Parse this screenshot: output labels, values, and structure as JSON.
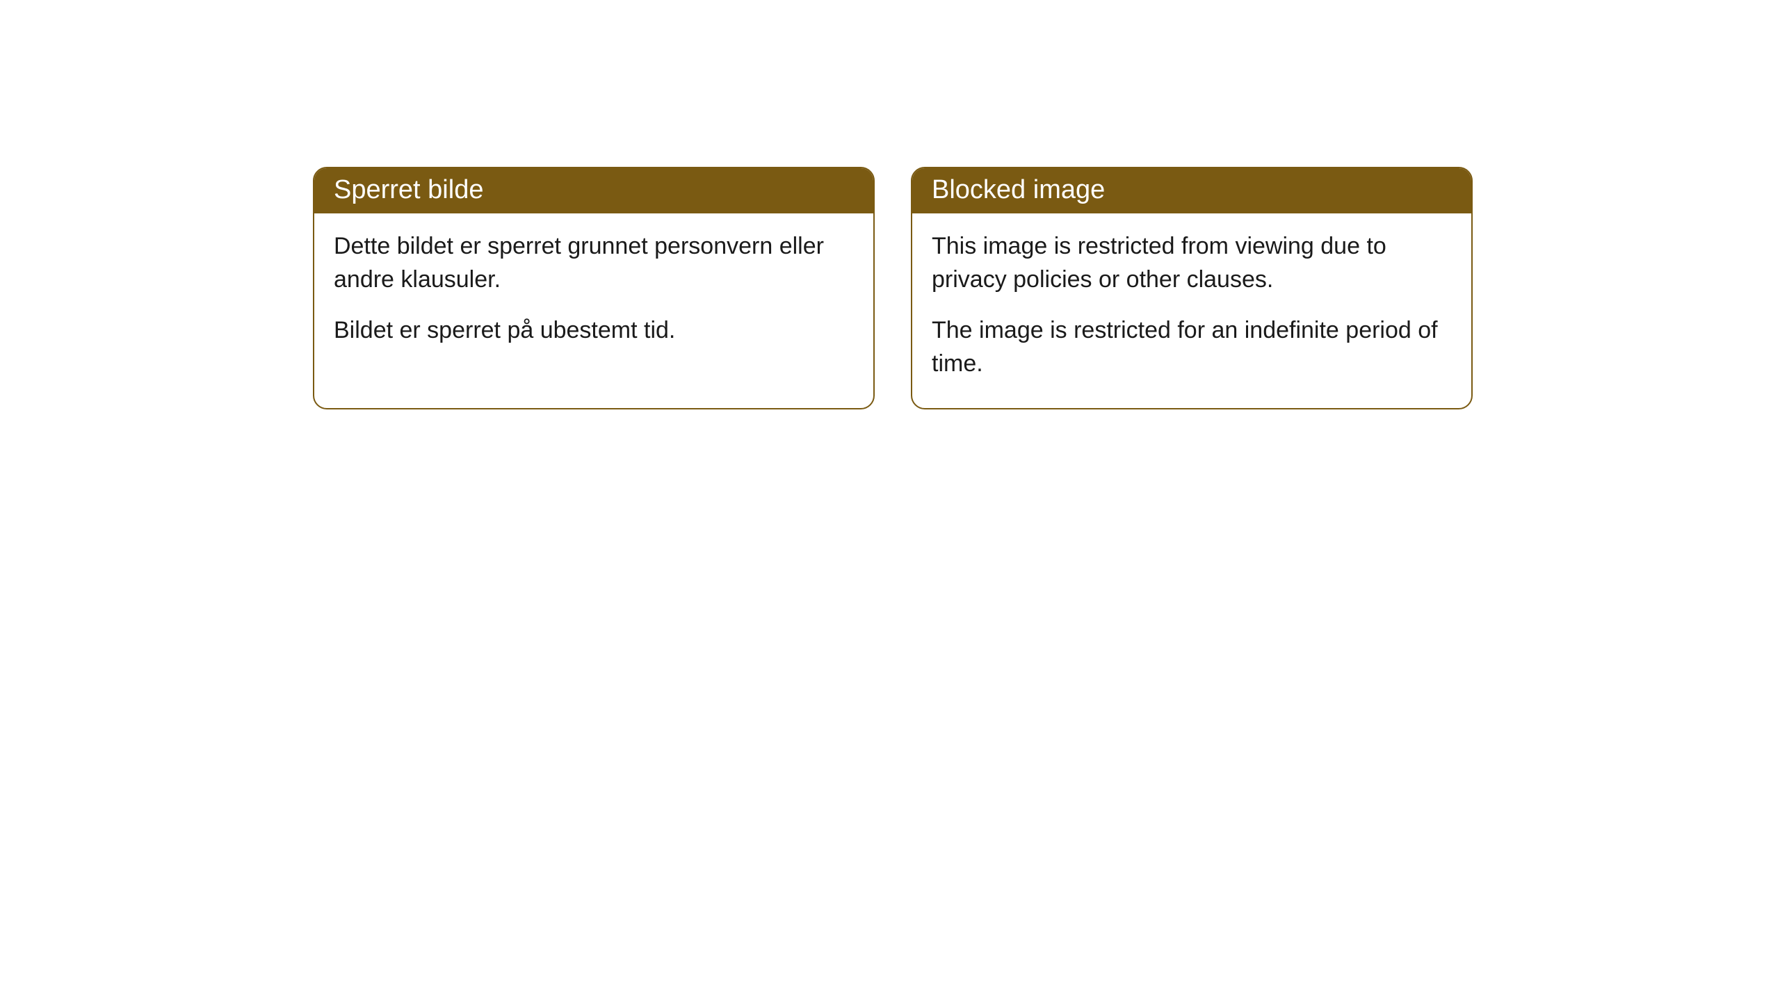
{
  "cards": [
    {
      "title": "Sperret bilde",
      "paragraph1": "Dette bildet er sperret grunnet personvern eller andre klausuler.",
      "paragraph2": "Bildet er sperret på ubestemt tid."
    },
    {
      "title": "Blocked image",
      "paragraph1": "This image is restricted from viewing due to privacy policies or other clauses.",
      "paragraph2": "The image is restricted for an indefinite period of time."
    }
  ],
  "style": {
    "header_bg": "#7a5a12",
    "header_color": "#ffffff",
    "border_color": "#7a5a12",
    "body_bg": "#ffffff",
    "body_color": "#1a1a1a",
    "border_radius": 20,
    "header_fontsize": 38,
    "body_fontsize": 34
  }
}
